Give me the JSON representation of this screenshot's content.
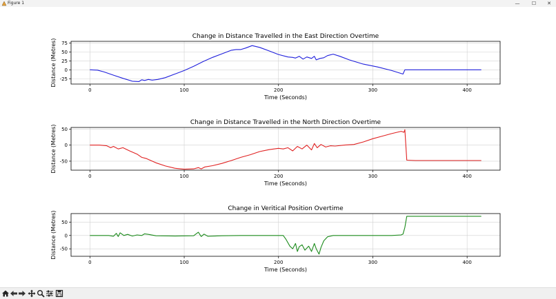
{
  "window": {
    "title": "Figure 1",
    "minimize_label": "—",
    "maximize_label": "☐",
    "close_label": "✕"
  },
  "toolbar": {
    "icons": [
      "home-icon",
      "back-icon",
      "forward-icon",
      "pan-icon",
      "zoom-icon",
      "configure-subplots-icon",
      "save-icon"
    ]
  },
  "colors": {
    "east": "#1f1fdc",
    "north": "#e02020",
    "vertical": "#1a8a1a",
    "grid": "#d0d0d0"
  },
  "chart_data": [
    {
      "type": "line",
      "title": "Change in Distance Travelled in the East Direction Overtime",
      "xlabel": "Time (Seconds)",
      "ylabel": "Distance (Metres)",
      "xlim": [
        -20,
        435
      ],
      "ylim": [
        -40,
        80
      ],
      "xticks": [
        0,
        100,
        200,
        300,
        400
      ],
      "yticks": [
        -25,
        0,
        25,
        50,
        75
      ],
      "grid": true,
      "series": [
        {
          "name": "East",
          "color": "#1f1fdc",
          "x": [
            0,
            8,
            15,
            25,
            35,
            45,
            52,
            55,
            58,
            62,
            66,
            72,
            80,
            90,
            100,
            110,
            120,
            130,
            140,
            145,
            150,
            155,
            160,
            165,
            172,
            180,
            190,
            200,
            210,
            215,
            218,
            222,
            226,
            230,
            235,
            238,
            240,
            244,
            248,
            252,
            258,
            265,
            275,
            290,
            305,
            320,
            332,
            334,
            336,
            350,
            380,
            415
          ],
          "y": [
            0,
            -1,
            -6,
            -15,
            -24,
            -32,
            -33,
            -28,
            -30,
            -27,
            -29,
            -27,
            -22,
            -12,
            -2,
            10,
            23,
            35,
            45,
            50,
            55,
            57,
            57,
            61,
            68,
            63,
            53,
            43,
            36,
            35,
            33,
            38,
            30,
            36,
            32,
            38,
            28,
            32,
            34,
            40,
            44,
            38,
            28,
            16,
            8,
            -2,
            -12,
            0,
            0,
            0,
            0,
            0
          ]
        }
      ]
    },
    {
      "type": "line",
      "title": "Change in Distance Travelled in the North Direction Overtime",
      "xlabel": "Time (Seconds)",
      "ylabel": "Distance (Metres)",
      "xlim": [
        -20,
        435
      ],
      "ylim": [
        -78,
        55
      ],
      "xticks": [
        0,
        100,
        200,
        300,
        400
      ],
      "yticks": [
        -50,
        0,
        50
      ],
      "grid": true,
      "series": [
        {
          "name": "North",
          "color": "#e02020",
          "x": [
            0,
            10,
            18,
            22,
            25,
            30,
            35,
            42,
            50,
            55,
            60,
            70,
            80,
            90,
            100,
            110,
            115,
            118,
            122,
            130,
            140,
            150,
            160,
            170,
            180,
            190,
            200,
            205,
            210,
            215,
            220,
            225,
            230,
            235,
            238,
            241,
            245,
            250,
            255,
            260,
            270,
            280,
            290,
            300,
            310,
            320,
            330,
            333,
            334,
            336,
            345,
            380,
            415
          ],
          "y": [
            0,
            0,
            -2,
            -8,
            -4,
            -12,
            -8,
            -18,
            -28,
            -38,
            -42,
            -55,
            -65,
            -72,
            -75,
            -74,
            -70,
            -74,
            -68,
            -64,
            -57,
            -48,
            -38,
            -30,
            -20,
            -14,
            -10,
            -12,
            -8,
            -18,
            -4,
            -12,
            0,
            -15,
            5,
            -8,
            2,
            -6,
            -2,
            -3,
            0,
            2,
            10,
            20,
            28,
            36,
            43,
            40,
            48,
            -47,
            -48,
            -48,
            -48
          ]
        }
      ]
    },
    {
      "type": "line",
      "title": "Change in Veritical Position Overtime",
      "xlabel": "Time (Seconds)",
      "ylabel": "Distance (Metres)",
      "xlim": [
        -20,
        435
      ],
      "ylim": [
        -78,
        82
      ],
      "xticks": [
        0,
        100,
        200,
        300,
        400
      ],
      "yticks": [
        -50,
        0,
        50
      ],
      "grid": true,
      "series": [
        {
          "name": "Vertical",
          "color": "#1a8a1a",
          "x": [
            0,
            10,
            20,
            25,
            28,
            30,
            32,
            36,
            40,
            45,
            50,
            55,
            58,
            62,
            70,
            90,
            110,
            115,
            118,
            121,
            125,
            140,
            160,
            190,
            205,
            208,
            212,
            215,
            218,
            220,
            222,
            225,
            228,
            232,
            235,
            238,
            240,
            243,
            245,
            248,
            252,
            258,
            270,
            300,
            320,
            330,
            332,
            334,
            336,
            340,
            380,
            415
          ],
          "y": [
            0,
            0,
            0,
            -3,
            8,
            -4,
            10,
            0,
            4,
            -2,
            2,
            0,
            6,
            4,
            -1,
            -2,
            -1,
            12,
            -4,
            5,
            -3,
            -1,
            0,
            0,
            0,
            -15,
            -40,
            -50,
            -30,
            -60,
            -42,
            -35,
            -55,
            -40,
            -60,
            -30,
            -50,
            -70,
            -45,
            -20,
            -5,
            0,
            0,
            0,
            0,
            2,
            5,
            30,
            72,
            72,
            72,
            72
          ]
        }
      ]
    }
  ]
}
